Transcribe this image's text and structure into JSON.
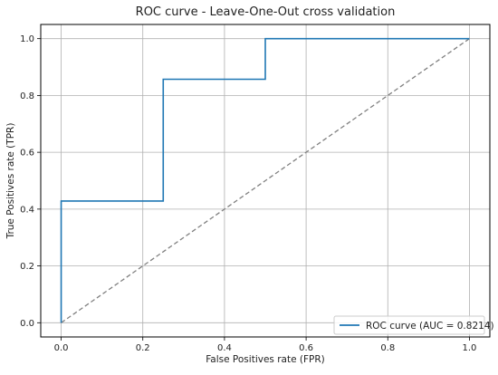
{
  "chart_data": {
    "type": "line",
    "title": "ROC curve - Leave-One-Out cross validation",
    "xlabel": "False Positives rate (FPR)",
    "ylabel": "True Positives rate (TPR)",
    "xlim": [
      -0.05,
      1.05
    ],
    "ylim": [
      -0.05,
      1.05
    ],
    "x_ticks": [
      0.0,
      0.2,
      0.4,
      0.6,
      0.8,
      1.0
    ],
    "y_ticks": [
      0.0,
      0.2,
      0.4,
      0.6,
      0.8,
      1.0
    ],
    "x_tick_labels": [
      "0.0",
      "0.2",
      "0.4",
      "0.6",
      "0.8",
      "1.0"
    ],
    "y_tick_labels": [
      "0.0",
      "0.2",
      "0.4",
      "0.6",
      "0.8",
      "1.0"
    ],
    "grid": true,
    "legend_position": "bottom-right",
    "series": [
      {
        "name": "ROC curve (AUC = 0.8214)",
        "color": "#1f77b4",
        "style": "solid",
        "x": [
          0.0,
          0.0,
          0.25,
          0.25,
          0.5,
          0.5,
          1.0
        ],
        "y": [
          0.0,
          0.4286,
          0.4286,
          0.8571,
          0.8571,
          1.0,
          1.0
        ]
      },
      {
        "color": "#808080",
        "style": "dashed",
        "x": [
          0.0,
          1.0
        ],
        "y": [
          0.0,
          1.0
        ]
      }
    ]
  }
}
